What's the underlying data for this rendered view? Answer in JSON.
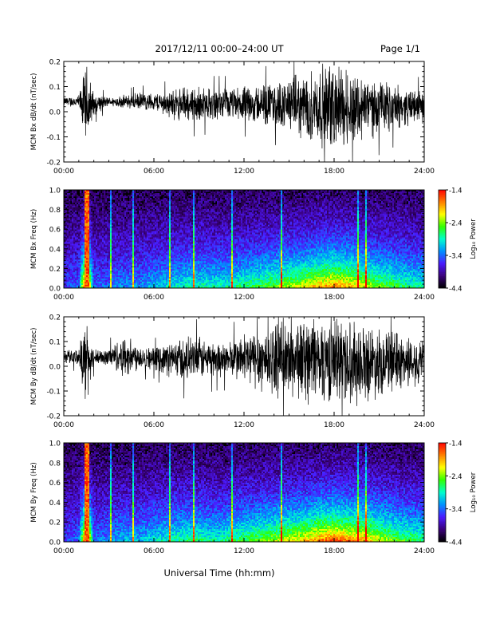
{
  "header": {
    "date_range": "2017/12/11   00:00–24:00 UT",
    "page_label": "Page 1/1"
  },
  "footer": {
    "xlabel": "Universal Time (hh:mm)"
  },
  "colorbar": {
    "label": "Log₁₀ Power",
    "range": [
      -4.4,
      -1.4
    ],
    "ticks": [
      "-1.4",
      "-2.4",
      "-3.4",
      "-4.4"
    ],
    "colors": [
      "#000000",
      "#3a007a",
      "#4b1aff",
      "#0090ff",
      "#00ffcc",
      "#30ff00",
      "#ffff00",
      "#ff8000",
      "#ff0000"
    ]
  },
  "chart_data": [
    {
      "type": "line",
      "ylabel": "MCM Bx dB/dt (nT/sec)",
      "xlim": [
        "00:00",
        "24:00"
      ],
      "ylim": [
        -0.2,
        0.2
      ],
      "xticks": [
        "00:00",
        "06:00",
        "12:00",
        "18:00",
        "24:00"
      ],
      "yticks": [
        "0.2",
        "0.1",
        "0.0",
        "-0.1",
        "-0.2"
      ],
      "series": [
        {
          "x": [
            "00:00",
            "01:00",
            "01:30",
            "02:00",
            "03:00",
            "04:00",
            "05:00",
            "06:00",
            "07:00",
            "08:00",
            "09:00",
            "10:00",
            "11:00",
            "12:00",
            "13:00",
            "14:00",
            "15:00",
            "16:00",
            "17:00",
            "18:00",
            "19:00",
            "20:00",
            "21:00",
            "22:00",
            "23:00",
            "24:00"
          ],
          "mean": [
            0.04,
            0.04,
            0.02,
            0.03,
            0.04,
            0.04,
            0.04,
            0.04,
            0.03,
            0.03,
            0.03,
            0.03,
            0.03,
            0.03,
            0.03,
            0.03,
            0.03,
            0.02,
            0.02,
            0.02,
            0.02,
            0.02,
            0.02,
            0.02,
            0.02,
            0.02
          ],
          "amplitude": [
            0.02,
            0.03,
            0.2,
            0.05,
            0.02,
            0.03,
            0.04,
            0.04,
            0.06,
            0.08,
            0.08,
            0.07,
            0.07,
            0.08,
            0.09,
            0.1,
            0.12,
            0.15,
            0.18,
            0.2,
            0.18,
            0.15,
            0.12,
            0.1,
            0.08,
            0.07
          ]
        }
      ]
    },
    {
      "type": "heatmap",
      "ylabel": "MCM Bx Freq (Hz)",
      "xlim": [
        "00:00",
        "24:00"
      ],
      "ylim": [
        0.0,
        1.0
      ],
      "xticks": [
        "00:00",
        "06:00",
        "12:00",
        "18:00",
        "24:00"
      ],
      "yticks": [
        "1.0",
        "0.8",
        "0.6",
        "0.4",
        "0.2",
        "0.0"
      ],
      "zlim": [
        -4.4,
        -1.4
      ],
      "x_hours": [
        0,
        1,
        1.5,
        2,
        3,
        4,
        5,
        6,
        7,
        8,
        9,
        10,
        11,
        12,
        13,
        14,
        15,
        16,
        17,
        18,
        19,
        20,
        21,
        22,
        23,
        24
      ],
      "activity": [
        0.05,
        0.1,
        1.0,
        0.1,
        0.1,
        0.15,
        0.15,
        0.2,
        0.25,
        0.3,
        0.3,
        0.3,
        0.3,
        0.35,
        0.4,
        0.45,
        0.5,
        0.55,
        0.65,
        0.7,
        0.65,
        0.55,
        0.45,
        0.4,
        0.35,
        0.3
      ]
    },
    {
      "type": "line",
      "ylabel": "MCM By dB/dt (nT/sec)",
      "xlim": [
        "00:00",
        "24:00"
      ],
      "ylim": [
        -0.2,
        0.2
      ],
      "xticks": [
        "00:00",
        "06:00",
        "12:00",
        "18:00",
        "24:00"
      ],
      "yticks": [
        "0.2",
        "0.1",
        "0.0",
        "-0.1",
        "-0.2"
      ],
      "series": [
        {
          "x": [
            "00:00",
            "01:00",
            "01:30",
            "02:00",
            "03:00",
            "04:00",
            "05:00",
            "06:00",
            "07:00",
            "08:00",
            "09:00",
            "10:00",
            "11:00",
            "12:00",
            "13:00",
            "14:00",
            "15:00",
            "16:00",
            "17:00",
            "18:00",
            "19:00",
            "20:00",
            "21:00",
            "22:00",
            "23:00",
            "24:00"
          ],
          "mean": [
            0.04,
            0.04,
            0.02,
            0.03,
            0.04,
            0.04,
            0.04,
            0.03,
            0.03,
            0.03,
            0.03,
            0.03,
            0.03,
            0.03,
            0.03,
            0.03,
            0.03,
            0.03,
            0.03,
            0.03,
            0.02,
            0.02,
            0.02,
            0.02,
            0.02,
            0.02
          ],
          "amplitude": [
            0.03,
            0.04,
            0.2,
            0.04,
            0.04,
            0.1,
            0.06,
            0.05,
            0.08,
            0.1,
            0.1,
            0.08,
            0.08,
            0.12,
            0.15,
            0.16,
            0.18,
            0.2,
            0.2,
            0.2,
            0.2,
            0.18,
            0.16,
            0.14,
            0.12,
            0.1
          ]
        }
      ]
    },
    {
      "type": "heatmap",
      "ylabel": "MCM By Freq (Hz)",
      "xlim": [
        "00:00",
        "24:00"
      ],
      "ylim": [
        0.0,
        1.0
      ],
      "xticks": [
        "00:00",
        "06:00",
        "12:00",
        "18:00",
        "24:00"
      ],
      "yticks": [
        "1.0",
        "0.8",
        "0.6",
        "0.4",
        "0.2",
        "0.0"
      ],
      "zlim": [
        -4.4,
        -1.4
      ],
      "x_hours": [
        0,
        1,
        1.5,
        2,
        3,
        4,
        5,
        6,
        7,
        8,
        9,
        10,
        11,
        12,
        13,
        14,
        15,
        16,
        17,
        18,
        19,
        20,
        21,
        22,
        23,
        24
      ],
      "activity": [
        0.05,
        0.1,
        1.0,
        0.1,
        0.15,
        0.2,
        0.2,
        0.25,
        0.3,
        0.35,
        0.35,
        0.3,
        0.35,
        0.4,
        0.45,
        0.5,
        0.55,
        0.6,
        0.7,
        0.75,
        0.7,
        0.65,
        0.55,
        0.45,
        0.4,
        0.35
      ]
    }
  ]
}
